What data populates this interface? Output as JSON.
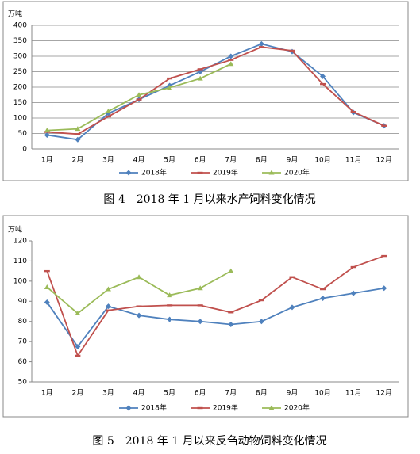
{
  "chart_data": [
    {
      "type": "line",
      "title": "图 4　2018 年 1 月以来水产饲料变化情况",
      "y_label": "万吨",
      "categories": [
        "1月",
        "2月",
        "3月",
        "4月",
        "5月",
        "6月",
        "7月",
        "8月",
        "9月",
        "10月",
        "11月",
        "12月"
      ],
      "ylim": [
        0,
        400
      ],
      "yticks": [
        0,
        50,
        100,
        150,
        200,
        250,
        300,
        350,
        400
      ],
      "grid": true,
      "legend": "bottom",
      "series": [
        {
          "name": "2018年",
          "color": "#4f81bd",
          "values": [
            45,
            30,
            115,
            160,
            205,
            250,
            300,
            340,
            315,
            235,
            118,
            75
          ]
        },
        {
          "name": "2019年",
          "color": "#c0504d",
          "values": [
            55,
            48,
            105,
            160,
            228,
            258,
            288,
            330,
            318,
            210,
            120,
            75
          ]
        },
        {
          "name": "2020年",
          "color": "#9bbb59",
          "values": [
            60,
            65,
            122,
            175,
            198,
            228,
            275,
            null,
            null,
            null,
            null,
            null
          ]
        }
      ]
    },
    {
      "type": "line",
      "title": "图 5　2018 年 1 月以来反刍动物饲料变化情况",
      "y_label": "万吨",
      "categories": [
        "1月",
        "2月",
        "3月",
        "4月",
        "5月",
        "6月",
        "7月",
        "8月",
        "9月",
        "10月",
        "11月",
        "12月"
      ],
      "ylim": [
        50,
        120
      ],
      "yticks": [
        50,
        60,
        70,
        80,
        90,
        100,
        110,
        120
      ],
      "grid": false,
      "legend": "bottom",
      "series": [
        {
          "name": "2018年",
          "color": "#4f81bd",
          "values": [
            89.5,
            67.5,
            87.5,
            83,
            81,
            80,
            78.5,
            80,
            87,
            91.5,
            94,
            96.5
          ]
        },
        {
          "name": "2019年",
          "color": "#c0504d",
          "values": [
            105,
            63,
            85.5,
            87.5,
            88,
            88,
            84.5,
            90.5,
            102,
            96,
            107,
            112.5
          ]
        },
        {
          "name": "2020年",
          "color": "#9bbb59",
          "values": [
            97,
            84,
            96,
            102,
            93,
            96.5,
            105,
            null,
            null,
            null,
            null,
            null
          ]
        }
      ]
    }
  ]
}
